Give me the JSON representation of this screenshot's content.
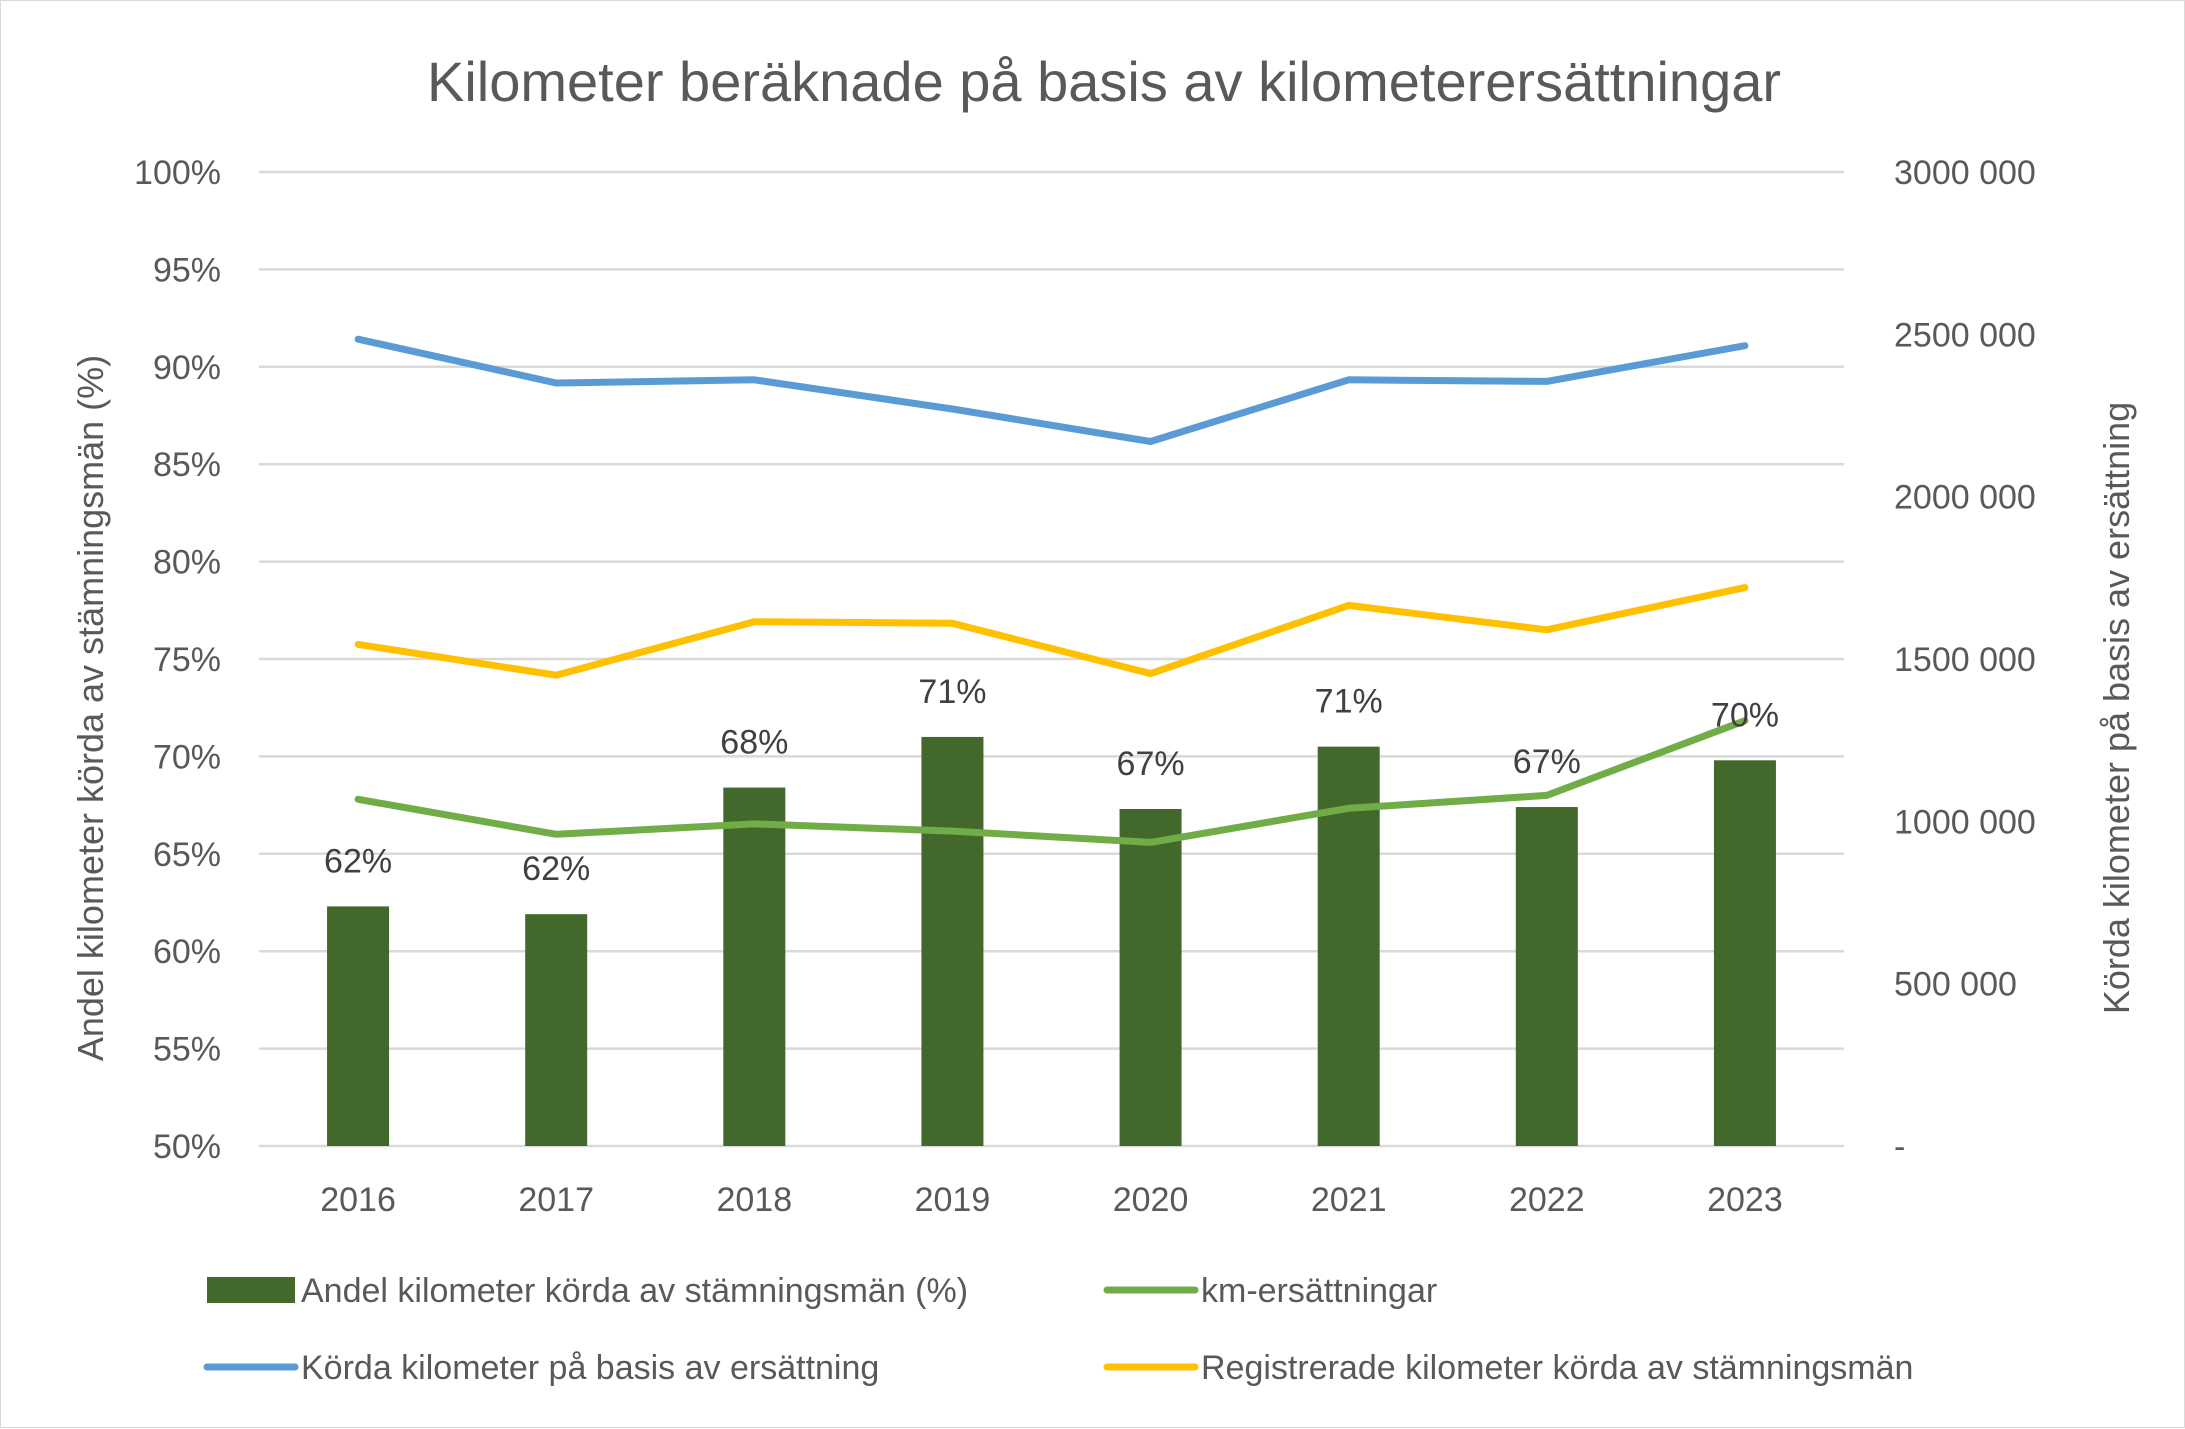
{
  "chart_data": {
    "type": "bar",
    "title": "Kilometer beräknade på basis av kilometerersättningar",
    "ylabel_left": "Andel kilometer körda av stämningsmän (%)",
    "ylabel_right": "Körda kilometer på basis av ersättning",
    "categories": [
      "2016",
      "2017",
      "2018",
      "2019",
      "2020",
      "2021",
      "2022",
      "2023"
    ],
    "y_left": {
      "range": [
        0.5,
        1.0
      ],
      "ticks": [
        0.5,
        0.55,
        0.6,
        0.65,
        0.7,
        0.75,
        0.8,
        0.85,
        0.9,
        0.95,
        1.0
      ],
      "tick_labels": [
        "50%",
        "55%",
        "60%",
        "65%",
        "70%",
        "75%",
        "80%",
        "85%",
        "90%",
        "95%",
        "100%"
      ]
    },
    "y_right": {
      "range": [
        0,
        3000000
      ],
      "ticks": [
        0,
        500000,
        1000000,
        1500000,
        2000000,
        2500000,
        3000000
      ],
      "tick_labels": [
        "-",
        "500 000",
        "1000 000",
        "1500 000",
        "2000 000",
        "2500 000",
        "3000 000"
      ]
    },
    "grid": true,
    "legend_position": "bottom",
    "series": [
      {
        "name": "Andel kilometer körda av stämningsmän (%)",
        "type": "bar",
        "axis": "left",
        "color": "#43682b",
        "values": [
          0.623,
          0.619,
          0.684,
          0.71,
          0.673,
          0.705,
          0.674,
          0.698
        ],
        "labels": [
          "62%",
          "62%",
          "68%",
          "71%",
          "67%",
          "71%",
          "67%",
          "70%"
        ]
      },
      {
        "name": "km-ersättningar",
        "type": "line",
        "axis": "right",
        "color": "#70ad47",
        "values": [
          1068000,
          960000,
          992000,
          970000,
          935000,
          1040000,
          1080000,
          1310000
        ]
      },
      {
        "name": "Körda kilometer på basis av ersättning",
        "type": "line",
        "axis": "right",
        "color": "#5b9bd5",
        "values": [
          2485000,
          2350000,
          2360000,
          2270000,
          2170000,
          2360000,
          2355000,
          2465000
        ]
      },
      {
        "name": "Registrerade kilometer körda av stämningsmän",
        "type": "line",
        "axis": "right",
        "color": "#ffc000",
        "values": [
          1545000,
          1450000,
          1615000,
          1610000,
          1455000,
          1665000,
          1590000,
          1720000
        ]
      }
    ],
    "legend_order": [
      0,
      1,
      2,
      3
    ]
  }
}
